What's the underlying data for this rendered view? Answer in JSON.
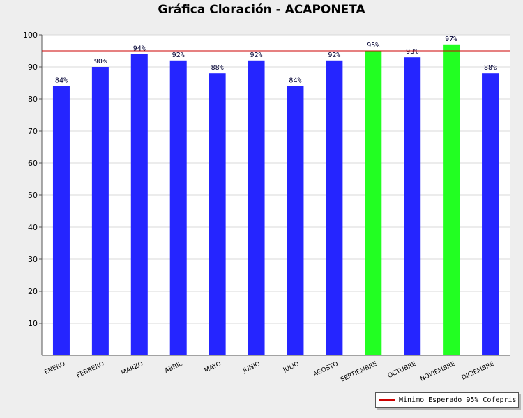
{
  "chart_data": {
    "type": "bar",
    "title": "Gráfica Cloración - ACAPONETA",
    "categories": [
      "ENERO",
      "FEBRERO",
      "MARZO",
      "ABRIL",
      "MAYO",
      "JUNIO",
      "JULIO",
      "AGOSTO",
      "SEPTIEMBRE",
      "OCTUBRE",
      "NOVIEMBRE",
      "DICIEMBRE"
    ],
    "values": [
      84,
      90,
      94,
      92,
      88,
      92,
      84,
      92,
      95,
      93,
      97,
      88
    ],
    "value_labels": [
      "84%",
      "90%",
      "94%",
      "92%",
      "88%",
      "92%",
      "84%",
      "92%",
      "95%",
      "93%",
      "97%",
      "88%"
    ],
    "bar_colors": [
      "#2525ff",
      "#2525ff",
      "#2525ff",
      "#2525ff",
      "#2525ff",
      "#2525ff",
      "#2525ff",
      "#2525ff",
      "#22ff22",
      "#2525ff",
      "#22ff22",
      "#2525ff"
    ],
    "ylim": [
      0,
      100
    ],
    "yticks": [
      10,
      20,
      30,
      40,
      50,
      60,
      70,
      80,
      90,
      100
    ],
    "reference_line": {
      "value": 95,
      "color": "#cc0000",
      "label": "Minimo Esperado 95% Cofepris"
    },
    "grid": true,
    "legend_position": "bottom-right"
  }
}
